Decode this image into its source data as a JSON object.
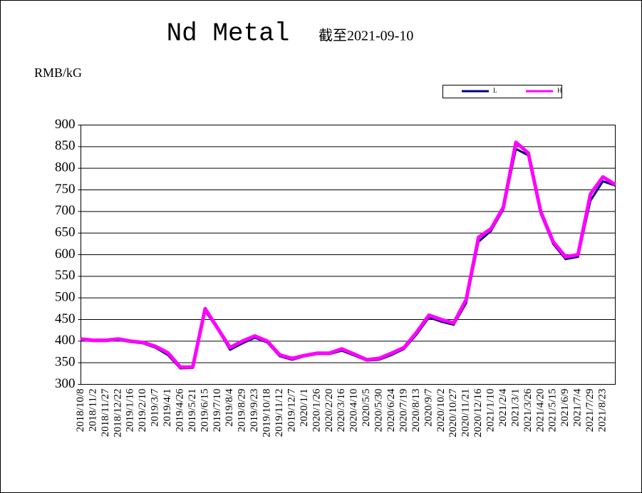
{
  "chart_data": {
    "type": "line",
    "title": "Nd Metal",
    "subtitle": "截至2021-09-10",
    "y_label": "RMB/kG",
    "categories": [
      "2018/10/8",
      "2018/11/2",
      "2018/11/27",
      "2018/12/22",
      "2019/1/16",
      "2019/2/10",
      "2019/3/7",
      "2019/4/1",
      "2019/4/26",
      "2019/5/21",
      "2019/6/15",
      "2019/7/10",
      "2019/8/4",
      "2019/8/29",
      "2019/9/23",
      "2019/10/18",
      "2019/11/12",
      "2019/12/7",
      "2020/1/1",
      "2020/1/26",
      "2020/2/20",
      "2020/3/16",
      "2020/4/10",
      "2020/5/5",
      "2020/5/30",
      "2020/6/24",
      "2020/7/19",
      "2020/8/13",
      "2020/9/7",
      "2020/10/2",
      "2020/10/27",
      "2020/11/21",
      "2020/12/16",
      "2021/1/10",
      "2021/2/4",
      "2021/3/1",
      "2021/3/26",
      "2021/4/20",
      "2021/5/15",
      "2021/6/9",
      "2021/7/4",
      "2021/7/29",
      "2021/8/23",
      null
    ],
    "series": [
      {
        "name": "L",
        "color": "#000080",
        "values": [
          403,
          400,
          400,
          403,
          398,
          395,
          385,
          368,
          337,
          338,
          470,
          428,
          380,
          395,
          408,
          397,
          365,
          357,
          365,
          370,
          370,
          378,
          367,
          355,
          357,
          368,
          382,
          415,
          455,
          445,
          438,
          488,
          630,
          655,
          705,
          845,
          830,
          695,
          625,
          590,
          595,
          725,
          770,
          760
        ]
      },
      {
        "name": "H",
        "color": "#ff00ff",
        "values": [
          405,
          402,
          402,
          405,
          400,
          397,
          388,
          373,
          340,
          340,
          475,
          430,
          385,
          400,
          412,
          400,
          368,
          360,
          367,
          372,
          372,
          382,
          370,
          357,
          360,
          372,
          385,
          420,
          460,
          450,
          442,
          496,
          640,
          660,
          710,
          860,
          835,
          700,
          630,
          595,
          600,
          740,
          780,
          762
        ]
      }
    ],
    "ylim": [
      300,
      900
    ],
    "yticks": [
      300,
      350,
      400,
      450,
      500,
      550,
      600,
      650,
      700,
      750,
      800,
      850,
      900
    ],
    "grid": true
  }
}
